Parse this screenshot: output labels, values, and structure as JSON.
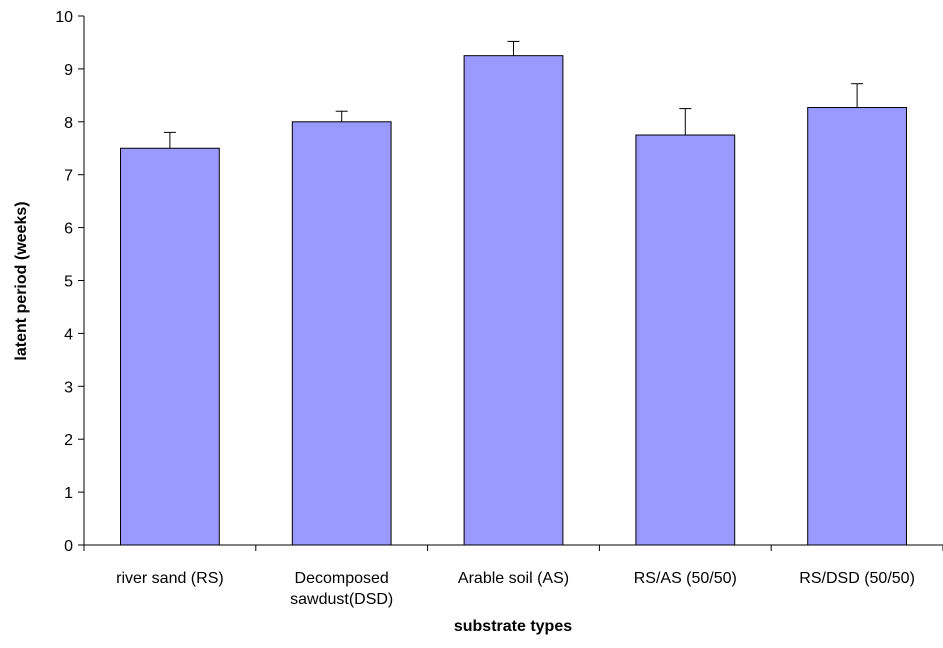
{
  "chart_data": {
    "type": "bar",
    "title": "",
    "xlabel": "substrate types",
    "ylabel": "latent period (weeks)",
    "categories": [
      [
        "river sand (RS)"
      ],
      [
        "Decomposed",
        "sawdust(DSD)"
      ],
      [
        "Arable soil (AS)"
      ],
      [
        "RS/AS (50/50)"
      ],
      [
        "RS/DSD (50/50)"
      ]
    ],
    "values": [
      7.5,
      8.0,
      9.25,
      7.75,
      8.27
    ],
    "error_upper": [
      0.3,
      0.2,
      0.27,
      0.5,
      0.45
    ],
    "ylim": [
      0,
      10
    ],
    "yticks": [
      0,
      1,
      2,
      3,
      4,
      5,
      6,
      7,
      8,
      9,
      10
    ],
    "bar_color": "#9999ff",
    "bar_edge_color": "#000000",
    "grid": false,
    "legend": "none"
  }
}
